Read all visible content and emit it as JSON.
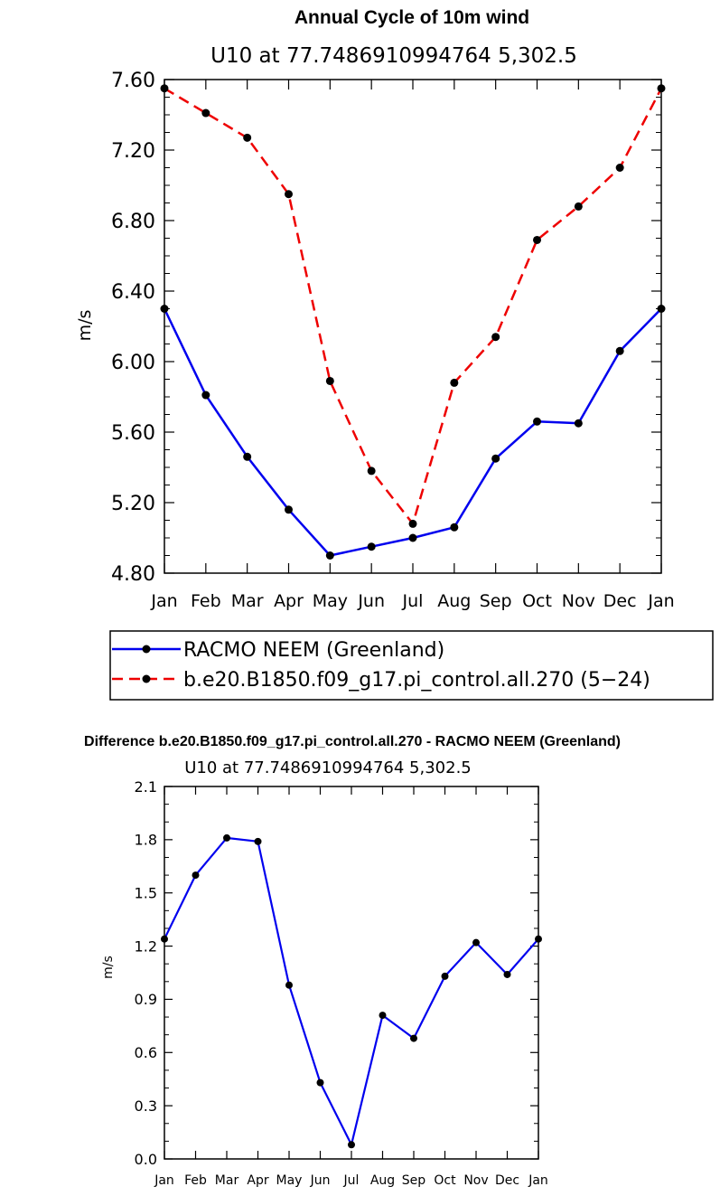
{
  "chart_data": [
    {
      "type": "line",
      "title": "Annual Cycle of 10m wind",
      "subtitle": "U10 at 77.7486910994764 5,302.5",
      "ylabel": "m/s",
      "ylim": [
        4.8,
        7.6
      ],
      "yticks": [
        "4.80",
        "5.20",
        "5.60",
        "6.00",
        "6.40",
        "6.80",
        "7.20",
        "7.60"
      ],
      "categories": [
        "Jan",
        "Feb",
        "Mar",
        "Apr",
        "May",
        "Jun",
        "Jul",
        "Aug",
        "Sep",
        "Oct",
        "Nov",
        "Dec",
        "Jan"
      ],
      "legend_position": "bottom",
      "series": [
        {
          "name": "RACMO NEEM (Greenland)",
          "color": "#0000ee",
          "dash": "solid",
          "values": [
            6.3,
            5.81,
            5.46,
            5.16,
            4.9,
            4.95,
            5.0,
            5.06,
            5.45,
            5.66,
            5.65,
            6.06,
            6.3
          ]
        },
        {
          "name": "b.e20.B1850.f09_g17.pi_control.all.270 (5−24)",
          "color": "#ee0000",
          "dash": "dashed",
          "values": [
            7.55,
            7.41,
            7.27,
            6.95,
            5.89,
            5.38,
            5.08,
            5.88,
            6.14,
            6.69,
            6.88,
            7.1,
            7.55
          ]
        }
      ]
    },
    {
      "type": "line",
      "title": "Difference b.e20.B1850.f09_g17.pi_control.all.270 - RACMO NEEM (Greenland)",
      "subtitle": "U10 at 77.7486910994764 5,302.5",
      "ylabel": "m/s",
      "ylim": [
        0.0,
        2.1
      ],
      "yticks": [
        "0.0",
        "0.3",
        "0.6",
        "0.9",
        "1.2",
        "1.5",
        "1.8",
        "2.1"
      ],
      "categories": [
        "Jan",
        "Feb",
        "Mar",
        "Apr",
        "May",
        "Jun",
        "Jul",
        "Aug",
        "Sep",
        "Oct",
        "Nov",
        "Dec",
        "Jan"
      ],
      "series": [
        {
          "color": "#0000ee",
          "dash": "solid",
          "values": [
            1.24,
            1.6,
            1.81,
            1.79,
            0.98,
            0.43,
            0.08,
            0.81,
            0.68,
            1.03,
            1.22,
            1.04,
            1.24
          ]
        }
      ]
    }
  ]
}
